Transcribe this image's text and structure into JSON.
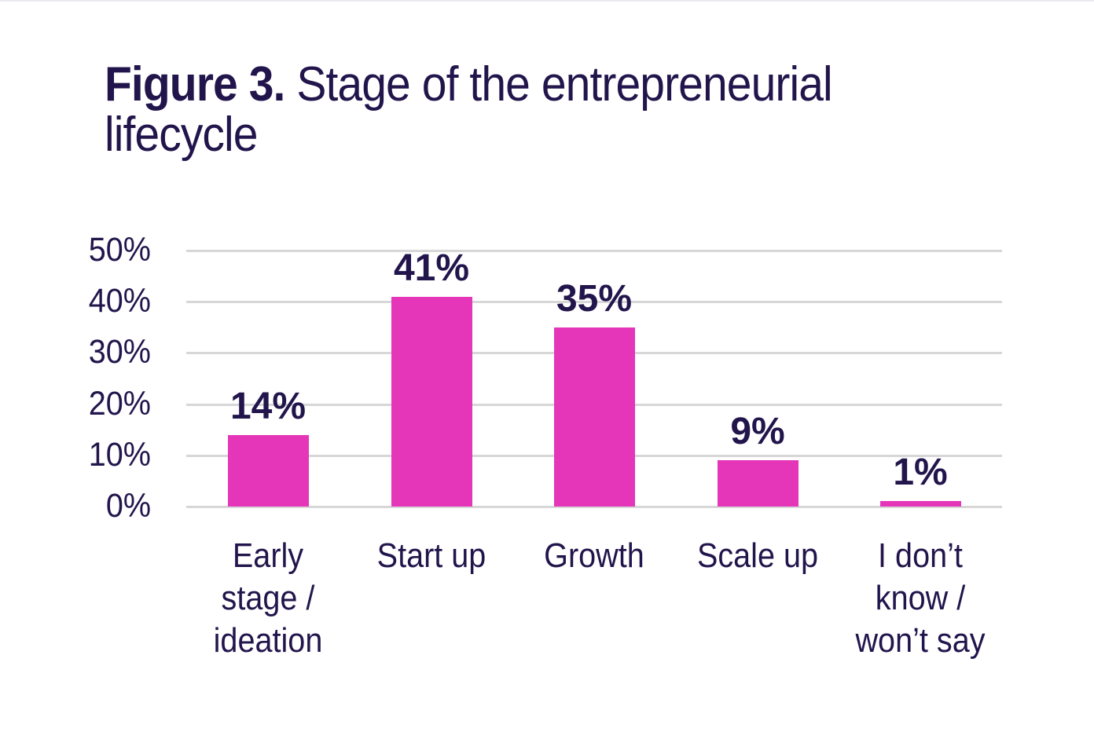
{
  "figure": {
    "label": "Figure 3.",
    "title": "Stage of the entrepreneurial lifecycle"
  },
  "colors": {
    "bar": "#e535b8",
    "text": "#22154c",
    "grid": "#d7d7d7"
  },
  "yaxis": {
    "ticks": [
      "50%",
      "40%",
      "30%",
      "20%",
      "10%",
      "0%"
    ]
  },
  "bars": [
    {
      "category": "Early stage / ideation",
      "lines": [
        "Early",
        "stage /",
        "ideation"
      ],
      "value": 14,
      "label": "14%"
    },
    {
      "category": "Start up",
      "lines": [
        "Start up"
      ],
      "value": 41,
      "label": "41%"
    },
    {
      "category": "Growth",
      "lines": [
        "Growth"
      ],
      "value": 35,
      "label": "35%"
    },
    {
      "category": "Scale up",
      "lines": [
        "Scale up"
      ],
      "value": 9,
      "label": "9%"
    },
    {
      "category": "I don’t know / won’t say",
      "lines": [
        "I don’t",
        "know /",
        "won’t say"
      ],
      "value": 1,
      "label": "1%"
    }
  ],
  "chart_data": {
    "type": "bar",
    "title": "Figure 3. Stage of the entrepreneurial lifecycle",
    "categories": [
      "Early stage / ideation",
      "Start up",
      "Growth",
      "Scale up",
      "I don’t know / won’t say"
    ],
    "values": [
      14,
      41,
      35,
      9,
      1
    ],
    "value_labels": [
      "14%",
      "41%",
      "35%",
      "9%",
      "1%"
    ],
    "xlabel": "",
    "ylabel": "",
    "ylim": [
      0,
      50
    ],
    "yticks": [
      "0%",
      "10%",
      "20%",
      "30%",
      "40%",
      "50%"
    ],
    "grid": true,
    "legend": null,
    "bar_color": "#e535b8"
  }
}
